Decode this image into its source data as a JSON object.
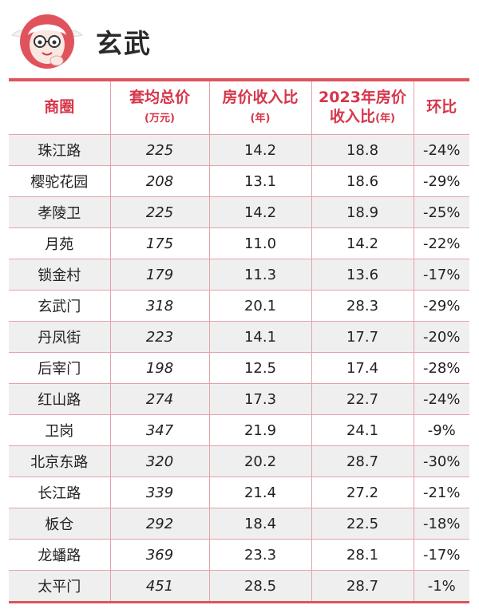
{
  "header": {
    "title": "玄武",
    "logo_icon": "cartoon-character-logo-icon"
  },
  "table": {
    "columns": [
      {
        "label": "商圈",
        "unit": ""
      },
      {
        "label": "套均总价",
        "unit": "(万元)"
      },
      {
        "label": "房价收入比",
        "unit": "(年)"
      },
      {
        "label": "2023年房价",
        "label2": "收入比",
        "unit": "(年)"
      },
      {
        "label": "环比",
        "unit": ""
      }
    ],
    "rows": [
      {
        "area": "珠江路",
        "price": "225",
        "ratio": "14.2",
        "ratio2023": "18.8",
        "change": "-24%"
      },
      {
        "area": "樱驼花园",
        "price": "208",
        "ratio": "13.1",
        "ratio2023": "18.6",
        "change": "-29%"
      },
      {
        "area": "孝陵卫",
        "price": "225",
        "ratio": "14.2",
        "ratio2023": "18.9",
        "change": "-25%"
      },
      {
        "area": "月苑",
        "price": "175",
        "ratio": "11.0",
        "ratio2023": "14.2",
        "change": "-22%"
      },
      {
        "area": "锁金村",
        "price": "179",
        "ratio": "11.3",
        "ratio2023": "13.6",
        "change": "-17%"
      },
      {
        "area": "玄武门",
        "price": "318",
        "ratio": "20.1",
        "ratio2023": "28.3",
        "change": "-29%"
      },
      {
        "area": "丹凤街",
        "price": "223",
        "ratio": "14.1",
        "ratio2023": "17.7",
        "change": "-20%"
      },
      {
        "area": "后宰门",
        "price": "198",
        "ratio": "12.5",
        "ratio2023": "17.4",
        "change": "-28%"
      },
      {
        "area": "红山路",
        "price": "274",
        "ratio": "17.3",
        "ratio2023": "22.7",
        "change": "-24%"
      },
      {
        "area": "卫岗",
        "price": "347",
        "ratio": "21.9",
        "ratio2023": "24.1",
        "change": "-9%"
      },
      {
        "area": "北京东路",
        "price": "320",
        "ratio": "20.2",
        "ratio2023": "28.7",
        "change": "-30%"
      },
      {
        "area": "长江路",
        "price": "339",
        "ratio": "21.4",
        "ratio2023": "27.2",
        "change": "-21%"
      },
      {
        "area": "板仓",
        "price": "292",
        "ratio": "18.4",
        "ratio2023": "22.5",
        "change": "-18%"
      },
      {
        "area": "龙蟠路",
        "price": "369",
        "ratio": "23.3",
        "ratio2023": "28.1",
        "change": "-17%"
      },
      {
        "area": "太平门",
        "price": "451",
        "ratio": "28.5",
        "ratio2023": "28.7",
        "change": "-1%"
      }
    ]
  },
  "colors": {
    "accent": "#d6364a",
    "rule": "#e0535d",
    "grid": "#e3a3ab",
    "stripe": "#efefef"
  }
}
